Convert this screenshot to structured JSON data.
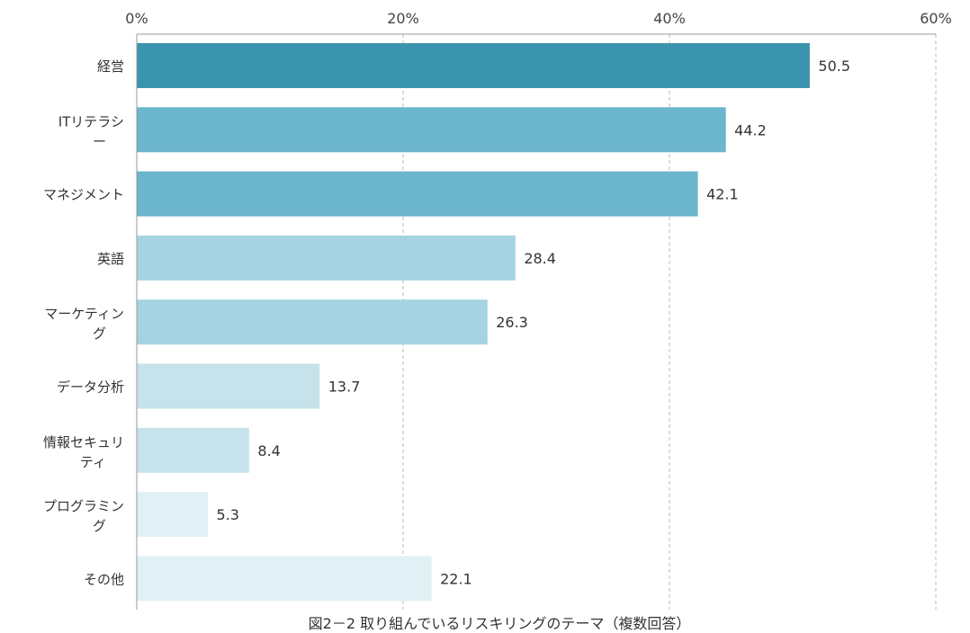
{
  "chart_data": {
    "type": "bar",
    "orientation": "horizontal",
    "categories": [
      "経営",
      "ITリテラシー",
      "マネジメント",
      "英語",
      "マーケティング",
      "データ分析",
      "情報セキュリティ",
      "プログラミング",
      "その他"
    ],
    "values": [
      50.5,
      44.2,
      42.1,
      28.4,
      26.3,
      13.7,
      8.4,
      5.3,
      22.1
    ],
    "data_labels": [
      "50.5",
      "44.2",
      "42.1",
      "28.4",
      "26.3",
      "13.7",
      "8.4",
      "5.3",
      "22.1"
    ],
    "xlim": [
      0,
      60
    ],
    "x_ticks": [
      0,
      20,
      40,
      60
    ],
    "x_tick_labels": [
      "0%",
      "20%",
      "40%",
      "60%"
    ],
    "x_axis_position": "top",
    "grid": "vertical dashed",
    "bar_colors": [
      "#3a94ad",
      "#6bb5cd",
      "#6bb5cd",
      "#a6d3e1",
      "#a6d3e1",
      "#c6e3ec",
      "#c6e3ec",
      "#e1f0f5",
      "#e1f0f5"
    ]
  },
  "caption": "図2－2 取り組んでいるリスキリングのテーマ（複数回答）"
}
